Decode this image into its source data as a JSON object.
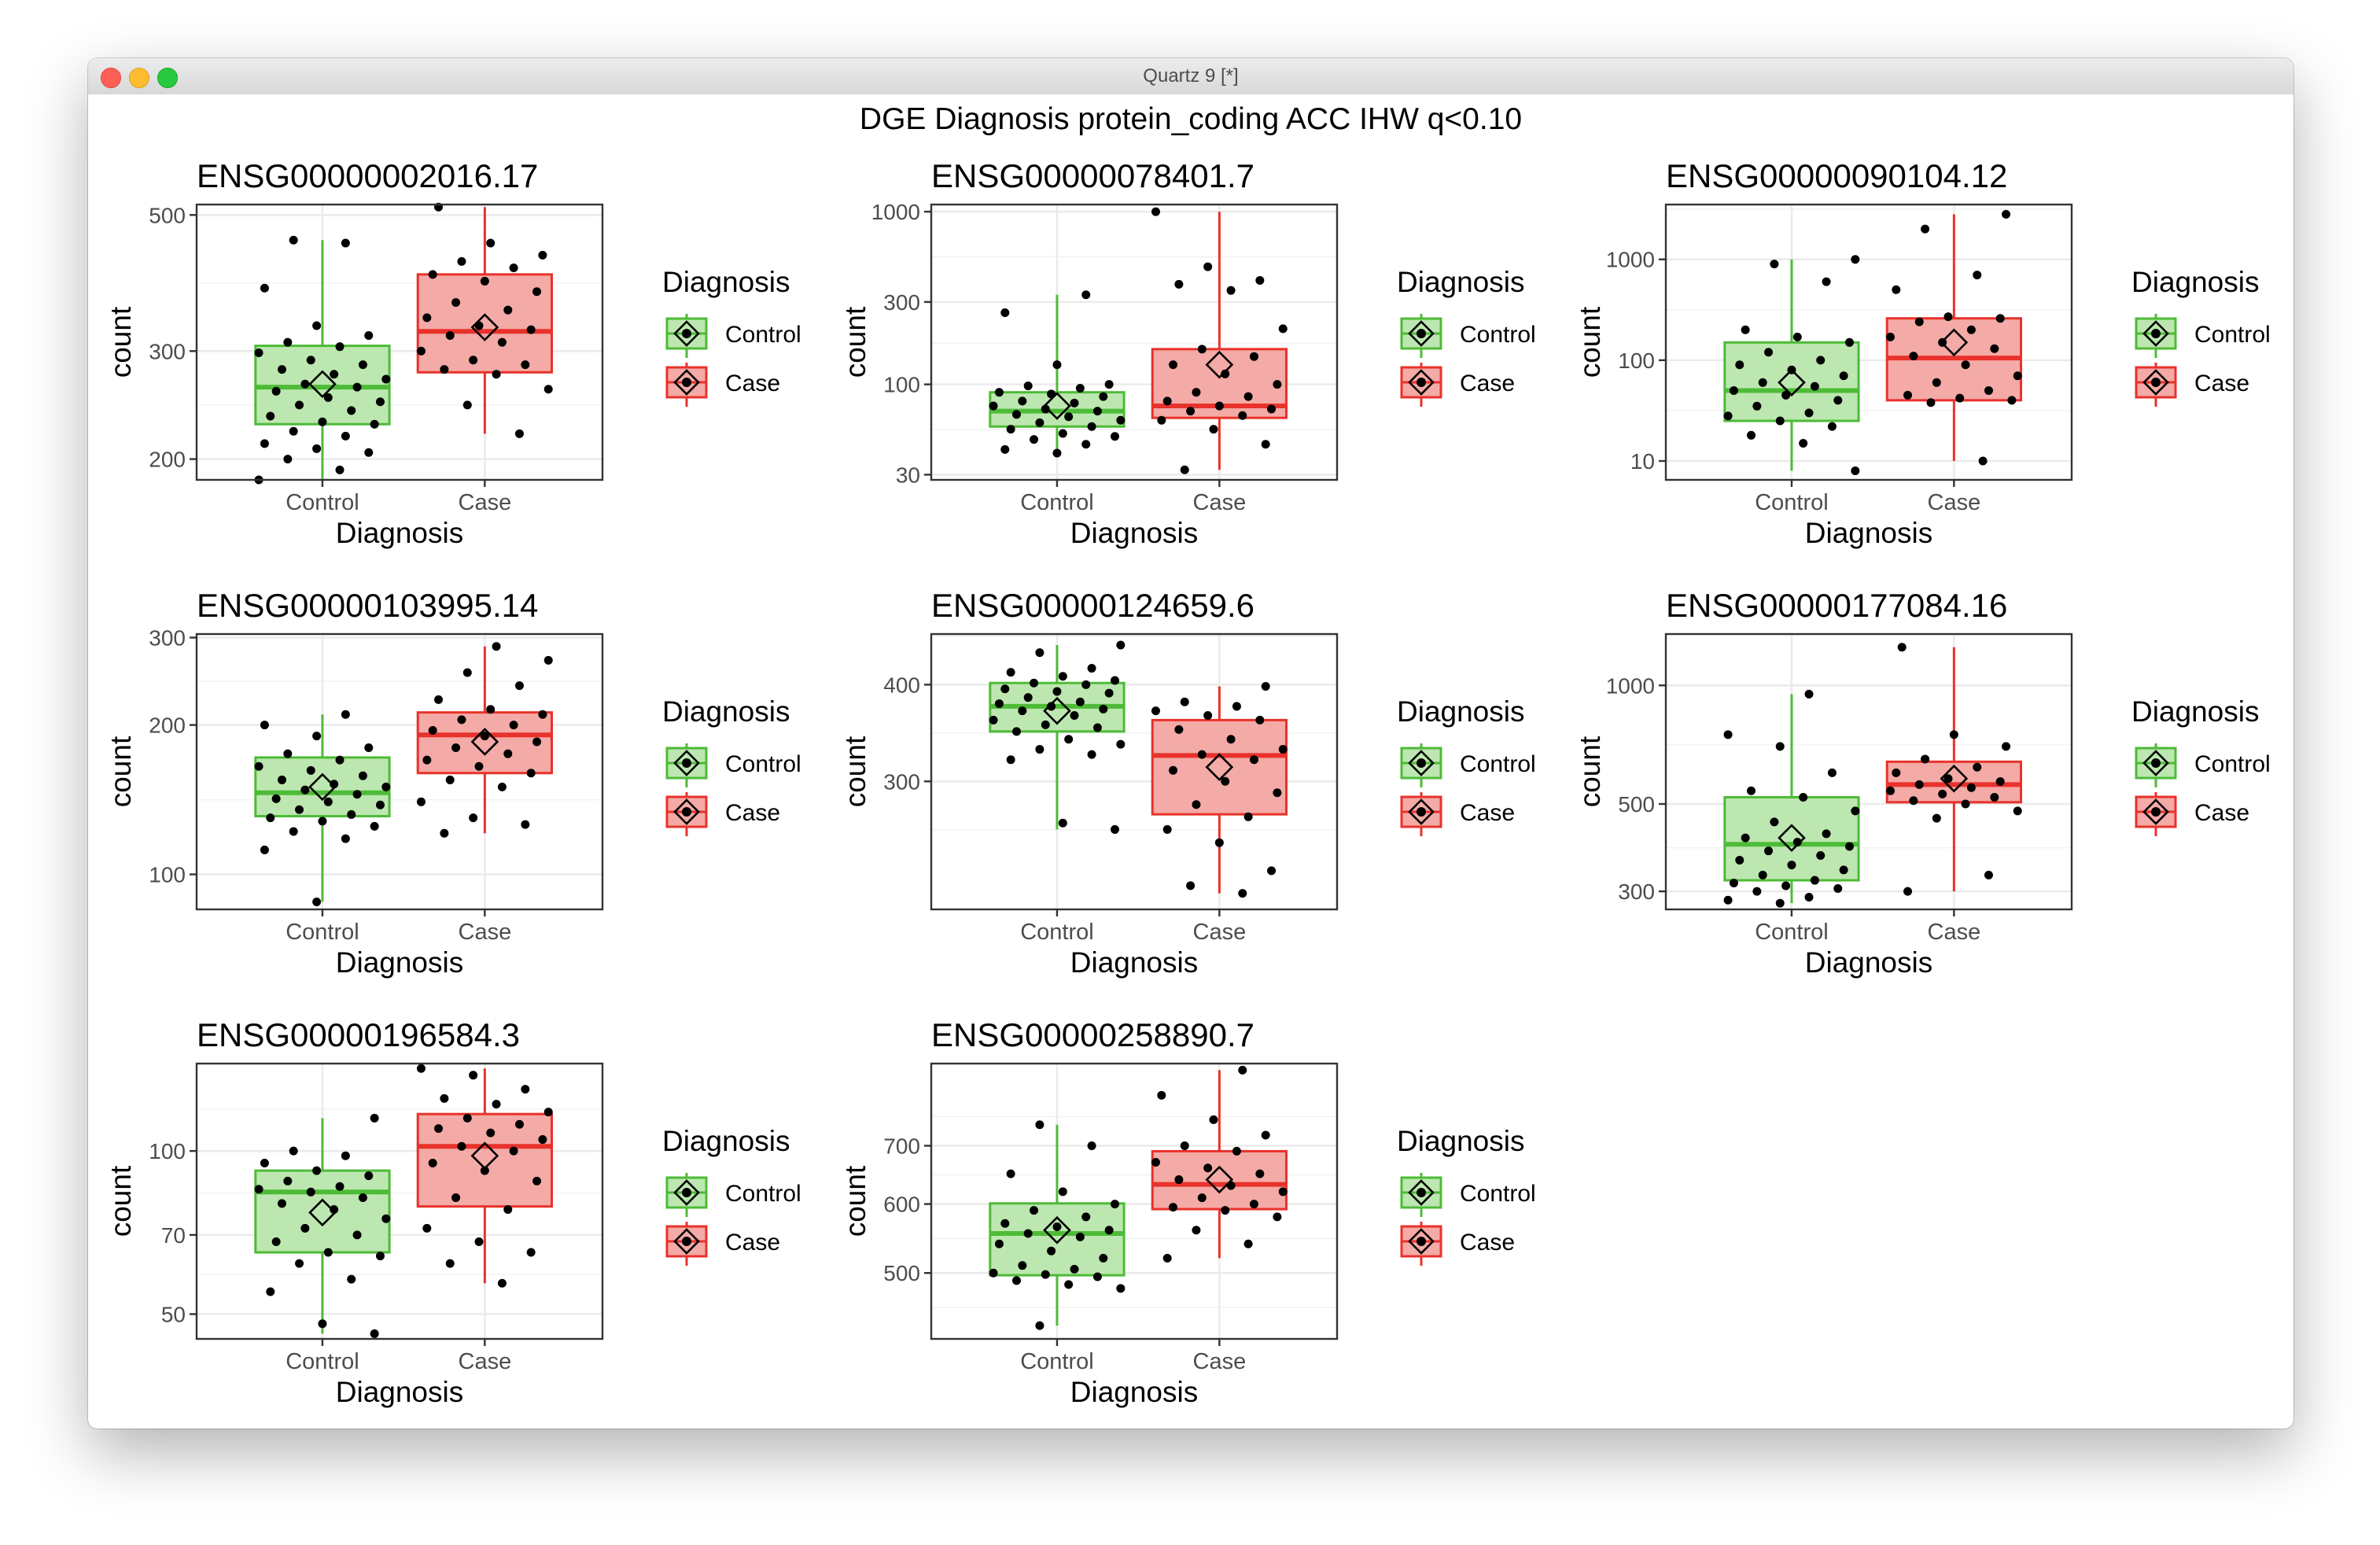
{
  "window": {
    "title": "Quartz 9 [*]"
  },
  "colors": {
    "control": "#4dbb37",
    "control_fill": "#bde7b0",
    "case": "#e8322b",
    "case_fill": "#f4aaa6",
    "grid": "#ebebeb",
    "panel_border": "#333333"
  },
  "page_title": "DGE Diagnosis protein_coding ACC IHW q<0.10",
  "chart_data": [
    {
      "type": "box",
      "title": "ENSG00000002016.17",
      "xlabel": "Diagnosis",
      "ylabel": "count",
      "categories": [
        "Control",
        "Case"
      ],
      "yscale": "log",
      "ylim": [
        185,
        520
      ],
      "yticks": [
        200,
        300,
        500
      ],
      "legend": {
        "title": "Diagnosis",
        "entries": [
          "Control",
          "Case"
        ],
        "position": "right"
      },
      "groups": [
        {
          "name": "Control",
          "min": 185,
          "q1": 228,
          "median": 262,
          "q3": 306,
          "max": 455,
          "mean": 265,
          "points": [
            185,
            192,
            200,
            205,
            208,
            212,
            218,
            222,
            228,
            230,
            235,
            240,
            245,
            248,
            252,
            258,
            262,
            265,
            270,
            275,
            280,
            285,
            290,
            298,
            305,
            310,
            318,
            330,
            380,
            450,
            455
          ]
        },
        {
          "name": "Case",
          "min": 220,
          "q1": 277,
          "median": 323,
          "q3": 400,
          "max": 515,
          "mean": 328,
          "points": [
            220,
            245,
            260,
            275,
            280,
            285,
            290,
            300,
            310,
            318,
            325,
            330,
            340,
            350,
            360,
            375,
            390,
            400,
            410,
            420,
            430,
            450,
            515
          ]
        }
      ]
    },
    {
      "type": "box",
      "title": "ENSG00000078401.7",
      "xlabel": "Diagnosis",
      "ylabel": "count",
      "categories": [
        "Control",
        "Case"
      ],
      "yscale": "log",
      "ylim": [
        28,
        1100
      ],
      "yticks": [
        30,
        100,
        300,
        1000
      ],
      "legend": {
        "title": "Diagnosis",
        "entries": [
          "Control",
          "Case"
        ],
        "position": "right"
      },
      "groups": [
        {
          "name": "Control",
          "min": 40,
          "q1": 57,
          "median": 70,
          "q3": 90,
          "max": 330,
          "mean": 75,
          "points": [
            40,
            42,
            45,
            48,
            50,
            52,
            55,
            57,
            60,
            62,
            65,
            67,
            70,
            72,
            75,
            78,
            80,
            85,
            88,
            90,
            95,
            98,
            100,
            130,
            260,
            330
          ]
        },
        {
          "name": "Case",
          "min": 32,
          "q1": 64,
          "median": 75,
          "q3": 160,
          "max": 1000,
          "mean": 130,
          "points": [
            32,
            45,
            55,
            62,
            66,
            70,
            72,
            75,
            80,
            85,
            90,
            100,
            115,
            130,
            145,
            160,
            210,
            350,
            380,
            400,
            480,
            1000
          ]
        }
      ]
    },
    {
      "type": "box",
      "title": "ENSG00000090104.12",
      "xlabel": "Diagnosis",
      "ylabel": "count",
      "categories": [
        "Control",
        "Case"
      ],
      "yscale": "log",
      "ylim": [
        6.5,
        3500
      ],
      "yticks": [
        10,
        100,
        1000
      ],
      "legend": {
        "title": "Diagnosis",
        "entries": [
          "Control",
          "Case"
        ],
        "position": "right"
      },
      "groups": [
        {
          "name": "Control",
          "min": 8,
          "q1": 25,
          "median": 50,
          "q3": 150,
          "max": 1000,
          "mean": 60,
          "points": [
            8,
            15,
            18,
            22,
            25,
            28,
            30,
            35,
            40,
            45,
            50,
            55,
            60,
            70,
            80,
            90,
            100,
            120,
            150,
            170,
            200,
            600,
            900,
            1000
          ]
        },
        {
          "name": "Case",
          "min": 10,
          "q1": 40,
          "median": 105,
          "q3": 260,
          "max": 2800,
          "mean": 150,
          "points": [
            10,
            38,
            40,
            42,
            45,
            50,
            60,
            70,
            90,
            110,
            130,
            150,
            170,
            200,
            240,
            260,
            270,
            500,
            700,
            2000,
            2800
          ]
        }
      ]
    },
    {
      "type": "box",
      "title": "ENSG00000103995.14",
      "xlabel": "Diagnosis",
      "ylabel": "count",
      "categories": [
        "Control",
        "Case"
      ],
      "yscale": "log",
      "ylim": [
        85,
        305
      ],
      "yticks": [
        100,
        200,
        300
      ],
      "legend": {
        "title": "Diagnosis",
        "entries": [
          "Control",
          "Case"
        ],
        "position": "right"
      },
      "groups": [
        {
          "name": "Control",
          "min": 88,
          "q1": 131,
          "median": 146,
          "q3": 172,
          "max": 210,
          "mean": 150,
          "points": [
            88,
            112,
            118,
            122,
            125,
            128,
            130,
            132,
            135,
            138,
            140,
            142,
            145,
            148,
            150,
            152,
            155,
            158,
            162,
            165,
            170,
            175,
            180,
            190,
            200,
            210
          ]
        },
        {
          "name": "Case",
          "min": 121,
          "q1": 160,
          "median": 191,
          "q3": 212,
          "max": 288,
          "mean": 185,
          "points": [
            121,
            126,
            130,
            140,
            150,
            155,
            160,
            165,
            170,
            175,
            180,
            185,
            190,
            195,
            200,
            205,
            210,
            215,
            225,
            240,
            255,
            270,
            288
          ]
        }
      ]
    },
    {
      "type": "box",
      "title": "ENSG00000124659.6",
      "xlabel": "Diagnosis",
      "ylabel": "count",
      "categories": [
        "Control",
        "Case"
      ],
      "yscale": "log",
      "ylim": [
        205,
        465
      ],
      "yticks": [
        300,
        400
      ],
      "legend": {
        "title": "Diagnosis",
        "entries": [
          "Control",
          "Case"
        ],
        "position": "right"
      },
      "groups": [
        {
          "name": "Control",
          "min": 260,
          "q1": 348,
          "median": 375,
          "q3": 402,
          "max": 450,
          "mean": 370,
          "points": [
            260,
            265,
            320,
            325,
            330,
            335,
            340,
            348,
            352,
            355,
            360,
            365,
            370,
            372,
            375,
            378,
            380,
            385,
            390,
            392,
            395,
            400,
            402,
            405,
            410,
            415,
            420,
            440,
            450
          ]
        },
        {
          "name": "Case",
          "min": 215,
          "q1": 272,
          "median": 324,
          "q3": 360,
          "max": 398,
          "mean": 313,
          "points": [
            215,
            220,
            230,
            250,
            260,
            270,
            280,
            290,
            300,
            310,
            320,
            325,
            330,
            340,
            350,
            360,
            365,
            370,
            375,
            380,
            398
          ]
        }
      ]
    },
    {
      "type": "box",
      "title": "ENSG00000177084.16",
      "xlabel": "Diagnosis",
      "ylabel": "count",
      "categories": [
        "Control",
        "Case"
      ],
      "yscale": "log",
      "ylim": [
        270,
        1350
      ],
      "yticks": [
        300,
        500,
        1000
      ],
      "legend": {
        "title": "Diagnosis",
        "entries": [
          "Control",
          "Case"
        ],
        "position": "right"
      },
      "groups": [
        {
          "name": "Control",
          "min": 280,
          "q1": 320,
          "median": 395,
          "q3": 520,
          "max": 950,
          "mean": 410,
          "points": [
            280,
            285,
            290,
            300,
            305,
            310,
            315,
            320,
            330,
            340,
            350,
            360,
            370,
            380,
            390,
            400,
            410,
            420,
            450,
            480,
            520,
            540,
            600,
            700,
            750,
            950
          ]
        },
        {
          "name": "Case",
          "min": 300,
          "q1": 505,
          "median": 560,
          "q3": 640,
          "max": 1250,
          "mean": 580,
          "points": [
            300,
            330,
            460,
            480,
            500,
            510,
            520,
            530,
            540,
            550,
            560,
            570,
            580,
            600,
            620,
            650,
            700,
            750,
            1250
          ]
        }
      ]
    },
    {
      "type": "box",
      "title": "ENSG00000196584.3",
      "xlabel": "Diagnosis",
      "ylabel": "count",
      "categories": [
        "Control",
        "Case"
      ],
      "yscale": "log",
      "ylim": [
        45,
        145
      ],
      "yticks": [
        50,
        70,
        100
      ],
      "legend": {
        "title": "Diagnosis",
        "entries": [
          "Control",
          "Case"
        ],
        "position": "right"
      },
      "groups": [
        {
          "name": "Control",
          "min": 46,
          "q1": 65,
          "median": 84,
          "q3": 92,
          "max": 115,
          "mean": 77,
          "points": [
            46,
            48,
            55,
            58,
            62,
            64,
            65,
            68,
            70,
            72,
            75,
            78,
            80,
            82,
            84,
            85,
            86,
            88,
            90,
            92,
            95,
            98,
            100,
            115
          ]
        },
        {
          "name": "Case",
          "min": 57,
          "q1": 79,
          "median": 102,
          "q3": 117,
          "max": 142,
          "mean": 98,
          "points": [
            57,
            62,
            65,
            68,
            72,
            78,
            82,
            88,
            92,
            95,
            100,
            102,
            105,
            108,
            110,
            112,
            115,
            118,
            122,
            125,
            130,
            138,
            142
          ]
        }
      ]
    },
    {
      "type": "box",
      "title": "ENSG00000258890.7",
      "xlabel": "Diagnosis",
      "ylabel": "count",
      "categories": [
        "Control",
        "Case"
      ],
      "yscale": "log",
      "ylim": [
        420,
        870
      ],
      "yticks": [
        500,
        600,
        700
      ],
      "legend": {
        "title": "Diagnosis",
        "entries": [
          "Control",
          "Case"
        ],
        "position": "right"
      },
      "groups": [
        {
          "name": "Control",
          "min": 435,
          "q1": 497,
          "median": 555,
          "q3": 601,
          "max": 740,
          "mean": 560,
          "points": [
            435,
            480,
            485,
            490,
            495,
            498,
            500,
            505,
            510,
            520,
            530,
            540,
            550,
            555,
            560,
            565,
            570,
            580,
            590,
            600,
            620,
            650,
            700,
            740
          ]
        },
        {
          "name": "Case",
          "min": 520,
          "q1": 592,
          "median": 632,
          "q3": 690,
          "max": 855,
          "mean": 640,
          "points": [
            520,
            540,
            560,
            580,
            590,
            595,
            600,
            610,
            620,
            630,
            640,
            650,
            660,
            670,
            690,
            700,
            720,
            750,
            800,
            855
          ]
        }
      ]
    }
  ]
}
